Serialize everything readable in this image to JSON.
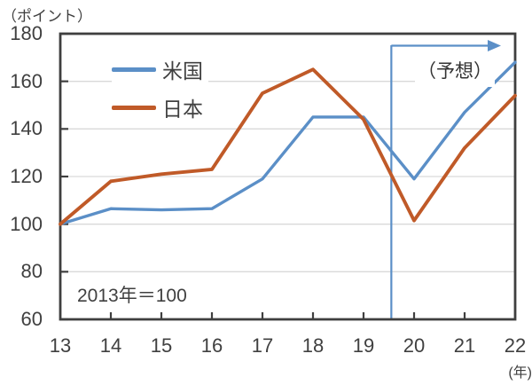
{
  "chart_data": {
    "type": "line",
    "y_axis_unit": "（ポイント）",
    "x_axis_unit": "(年)",
    "x": [
      13,
      14,
      15,
      16,
      17,
      18,
      19,
      20,
      21,
      22
    ],
    "series": [
      {
        "name": "米国",
        "color": "#5b8fc7",
        "values": [
          100,
          106.5,
          106,
          106.5,
          119,
          145,
          145,
          119,
          147,
          168
        ]
      },
      {
        "name": "日本",
        "color": "#c05a28",
        "values": [
          100,
          118,
          121,
          123,
          155,
          165,
          144,
          101.5,
          132,
          154
        ]
      }
    ],
    "ylim": [
      60,
      180
    ],
    "y_ticks": [
      60,
      80,
      100,
      120,
      140,
      160,
      180
    ],
    "grid": "horizontal",
    "grid_color": "#d9d9d9",
    "axis_color": "#3f3f3f",
    "legend_position": "top-left-inside",
    "baseline_note": "2013年＝100",
    "forecast": {
      "label": "（予想）",
      "boundary_x": 19.55,
      "line_color": "#5b8fc7"
    }
  }
}
